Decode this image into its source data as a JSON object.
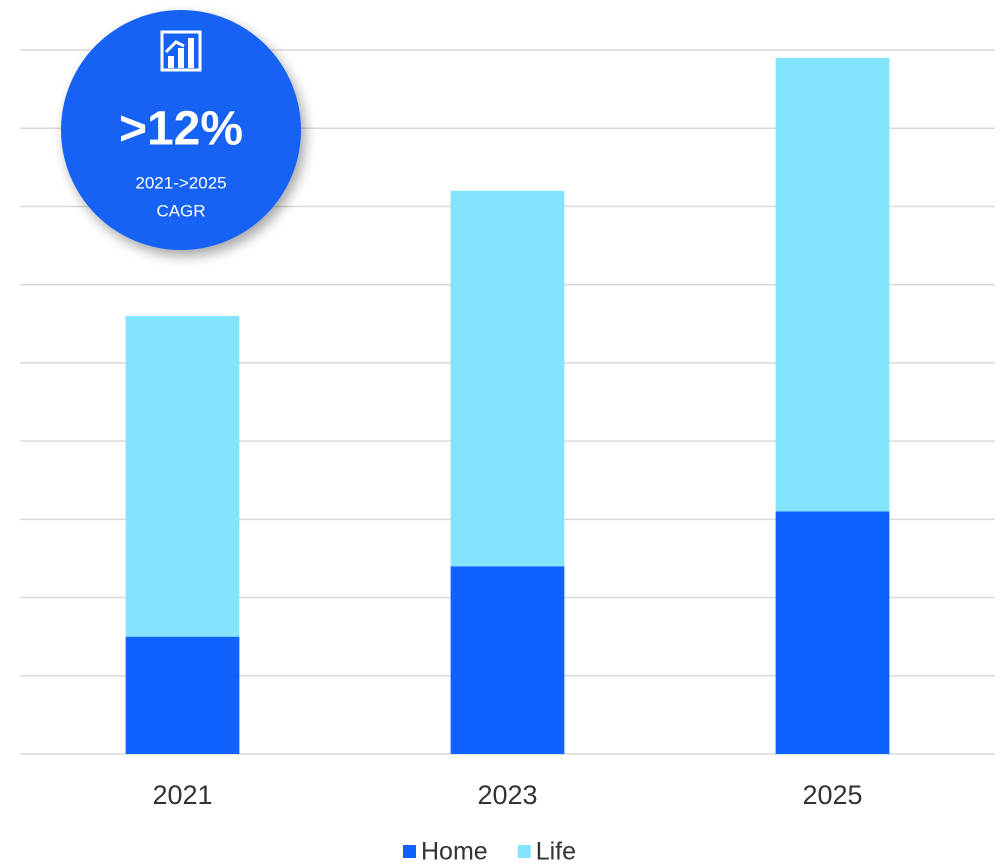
{
  "chart_data": {
    "type": "bar",
    "stacked": true,
    "categories": [
      "2021",
      "2023",
      "2025"
    ],
    "series": [
      {
        "name": "Home",
        "color": "#0f62fe",
        "values": [
          1.5,
          2.4,
          3.1
        ]
      },
      {
        "name": "Life",
        "color": "#82e5fd",
        "values": [
          4.1,
          4.8,
          5.8
        ]
      }
    ],
    "ylim": [
      0,
      9
    ],
    "yticks": [
      0,
      1,
      2,
      3,
      4,
      5,
      6,
      7,
      8,
      9
    ],
    "grid": true,
    "annotation": {
      "headline": ">12%",
      "period": "2021->2025",
      "metric": "CAGR"
    }
  }
}
